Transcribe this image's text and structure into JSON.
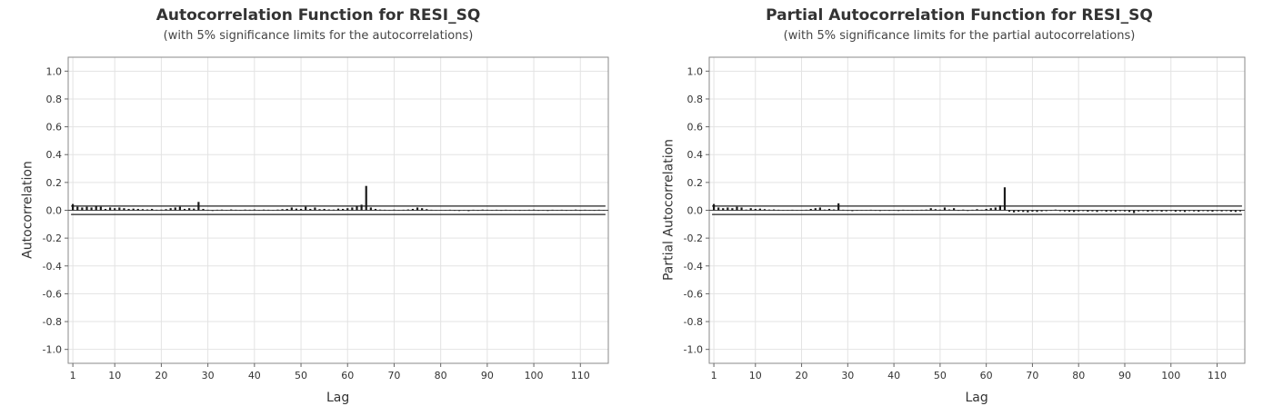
{
  "chart_data": [
    {
      "type": "bar",
      "title": "Autocorrelation Function for RESI_SQ",
      "subtitle": "(with 5% significance limits for the autocorrelations)",
      "xlabel": "Lag",
      "ylabel": "Autocorrelation",
      "xlim": [
        0,
        116
      ],
      "ylim": [
        -1.1,
        1.1
      ],
      "xticks": [
        1,
        10,
        20,
        30,
        40,
        50,
        60,
        70,
        80,
        90,
        100,
        110
      ],
      "yticks": [
        1.0,
        0.8,
        0.6,
        0.4,
        0.2,
        0.0,
        -0.2,
        -0.4,
        -0.6,
        -0.8,
        -1.0
      ],
      "ytick_labels": [
        "1.0",
        "0.8",
        "0.6",
        "0.4",
        "0.2",
        "0.0",
        "-0.2",
        "-0.4",
        "-0.6",
        "-0.8",
        "-1.0"
      ],
      "significance_limits": [
        0.03,
        -0.03
      ],
      "grid": true,
      "x": [
        1,
        2,
        3,
        4,
        5,
        6,
        7,
        8,
        9,
        10,
        11,
        12,
        13,
        14,
        15,
        16,
        17,
        18,
        19,
        20,
        21,
        22,
        23,
        24,
        25,
        26,
        27,
        28,
        29,
        30,
        31,
        32,
        33,
        34,
        35,
        36,
        37,
        38,
        39,
        40,
        41,
        42,
        43,
        44,
        45,
        46,
        47,
        48,
        49,
        50,
        51,
        52,
        53,
        54,
        55,
        56,
        57,
        58,
        59,
        60,
        61,
        62,
        63,
        64,
        65,
        66,
        67,
        68,
        69,
        70,
        71,
        72,
        73,
        74,
        75,
        76,
        77,
        78,
        79,
        80,
        81,
        82,
        83,
        84,
        85,
        86,
        87,
        88,
        89,
        90,
        91,
        92,
        93,
        94,
        95,
        96,
        97,
        98,
        99,
        100,
        101,
        102,
        103,
        104,
        105,
        106,
        107,
        108,
        109,
        110,
        111,
        112,
        113,
        114,
        115
      ],
      "values": [
        0.045,
        0.025,
        0.02,
        0.025,
        0.02,
        0.03,
        0.025,
        0.01,
        0.02,
        0.015,
        0.02,
        0.015,
        0.01,
        0.012,
        0.01,
        0.008,
        0.006,
        0.01,
        0.004,
        0.005,
        0.008,
        0.015,
        0.02,
        0.025,
        0.01,
        0.015,
        0.012,
        0.06,
        0.01,
        0.004,
        -0.005,
        0.004,
        0.005,
        0.003,
        0.006,
        0.004,
        -0.003,
        0.005,
        0.004,
        0.006,
        0.003,
        0.005,
        0.004,
        0.003,
        0.005,
        0.008,
        0.01,
        0.02,
        0.012,
        0.01,
        0.025,
        0.01,
        0.02,
        0.008,
        0.01,
        0.006,
        0.005,
        0.012,
        0.01,
        0.015,
        0.02,
        0.03,
        0.04,
        0.175,
        0.02,
        0.01,
        0.005,
        0.004,
        0.003,
        0.005,
        0.003,
        0.004,
        0.006,
        0.01,
        0.02,
        0.015,
        0.008,
        0.004,
        0.002,
        -0.002,
        0.003,
        0.004,
        -0.004,
        -0.005,
        0.003,
        -0.006,
        0.004,
        -0.004,
        0.005,
        0.004,
        -0.003,
        0.004,
        -0.004,
        0.004,
        -0.003,
        0.003,
        -0.004,
        0.003,
        0.004,
        0.005,
        -0.004,
        0.003,
        -0.005,
        0.004,
        0.003,
        0.004,
        -0.004,
        0.003,
        0.005,
        -0.004,
        0.004,
        0.003,
        -0.004,
        0.004,
        0.003
      ]
    },
    {
      "type": "bar",
      "title": "Partial Autocorrelation Function for RESI_SQ",
      "subtitle": "(with 5% significance limits for the partial autocorrelations)",
      "xlabel": "Lag",
      "ylabel": "Partial Autocorrelation",
      "xlim": [
        0,
        116
      ],
      "ylim": [
        -1.1,
        1.1
      ],
      "xticks": [
        1,
        10,
        20,
        30,
        40,
        50,
        60,
        70,
        80,
        90,
        100,
        110
      ],
      "yticks": [
        1.0,
        0.8,
        0.6,
        0.4,
        0.2,
        0.0,
        -0.2,
        -0.4,
        -0.6,
        -0.8,
        -1.0
      ],
      "ytick_labels": [
        "1.0",
        "0.8",
        "0.6",
        "0.4",
        "0.2",
        "0.0",
        "-0.2",
        "-0.4",
        "-0.6",
        "-0.8",
        "-1.0"
      ],
      "significance_limits": [
        0.03,
        -0.03
      ],
      "grid": true,
      "x": [
        1,
        2,
        3,
        4,
        5,
        6,
        7,
        8,
        9,
        10,
        11,
        12,
        13,
        14,
        15,
        16,
        17,
        18,
        19,
        20,
        21,
        22,
        23,
        24,
        25,
        26,
        27,
        28,
        29,
        30,
        31,
        32,
        33,
        34,
        35,
        36,
        37,
        38,
        39,
        40,
        41,
        42,
        43,
        44,
        45,
        46,
        47,
        48,
        49,
        50,
        51,
        52,
        53,
        54,
        55,
        56,
        57,
        58,
        59,
        60,
        61,
        62,
        63,
        64,
        65,
        66,
        67,
        68,
        69,
        70,
        71,
        72,
        73,
        74,
        75,
        76,
        77,
        78,
        79,
        80,
        81,
        82,
        83,
        84,
        85,
        86,
        87,
        88,
        89,
        90,
        91,
        92,
        93,
        94,
        95,
        96,
        97,
        98,
        99,
        100,
        101,
        102,
        103,
        104,
        105,
        106,
        107,
        108,
        109,
        110,
        111,
        112,
        113,
        114,
        115
      ],
      "values": [
        0.045,
        0.02,
        0.015,
        0.02,
        0.015,
        0.025,
        0.02,
        0.005,
        0.015,
        0.01,
        0.012,
        0.008,
        0.005,
        0.006,
        0.004,
        0.003,
        -0.003,
        0.004,
        -0.003,
        0.003,
        0.004,
        0.01,
        0.015,
        0.02,
        0.005,
        0.01,
        0.006,
        0.05,
        0.004,
        -0.004,
        -0.006,
        -0.004,
        0.003,
        -0.003,
        0.004,
        -0.004,
        -0.005,
        0.003,
        -0.004,
        0.003,
        -0.005,
        0.004,
        -0.003,
        -0.004,
        0.003,
        0.004,
        0.005,
        0.015,
        0.008,
        0.005,
        0.02,
        0.006,
        0.015,
        -0.004,
        0.005,
        -0.005,
        0.004,
        0.008,
        0.004,
        0.01,
        0.015,
        0.02,
        0.035,
        0.165,
        -0.01,
        -0.015,
        -0.01,
        -0.012,
        -0.015,
        -0.01,
        -0.012,
        -0.008,
        -0.006,
        -0.004,
        0.005,
        -0.006,
        -0.008,
        -0.01,
        -0.012,
        -0.008,
        -0.006,
        -0.01,
        -0.008,
        -0.012,
        -0.006,
        -0.01,
        -0.008,
        -0.01,
        -0.006,
        -0.008,
        -0.012,
        -0.02,
        -0.008,
        -0.006,
        -0.01,
        -0.008,
        -0.006,
        -0.01,
        -0.008,
        -0.006,
        -0.01,
        -0.008,
        -0.012,
        -0.006,
        -0.008,
        -0.01,
        -0.006,
        -0.008,
        -0.01,
        -0.006,
        -0.008,
        -0.006,
        -0.01,
        -0.012,
        -0.008
      ]
    }
  ]
}
